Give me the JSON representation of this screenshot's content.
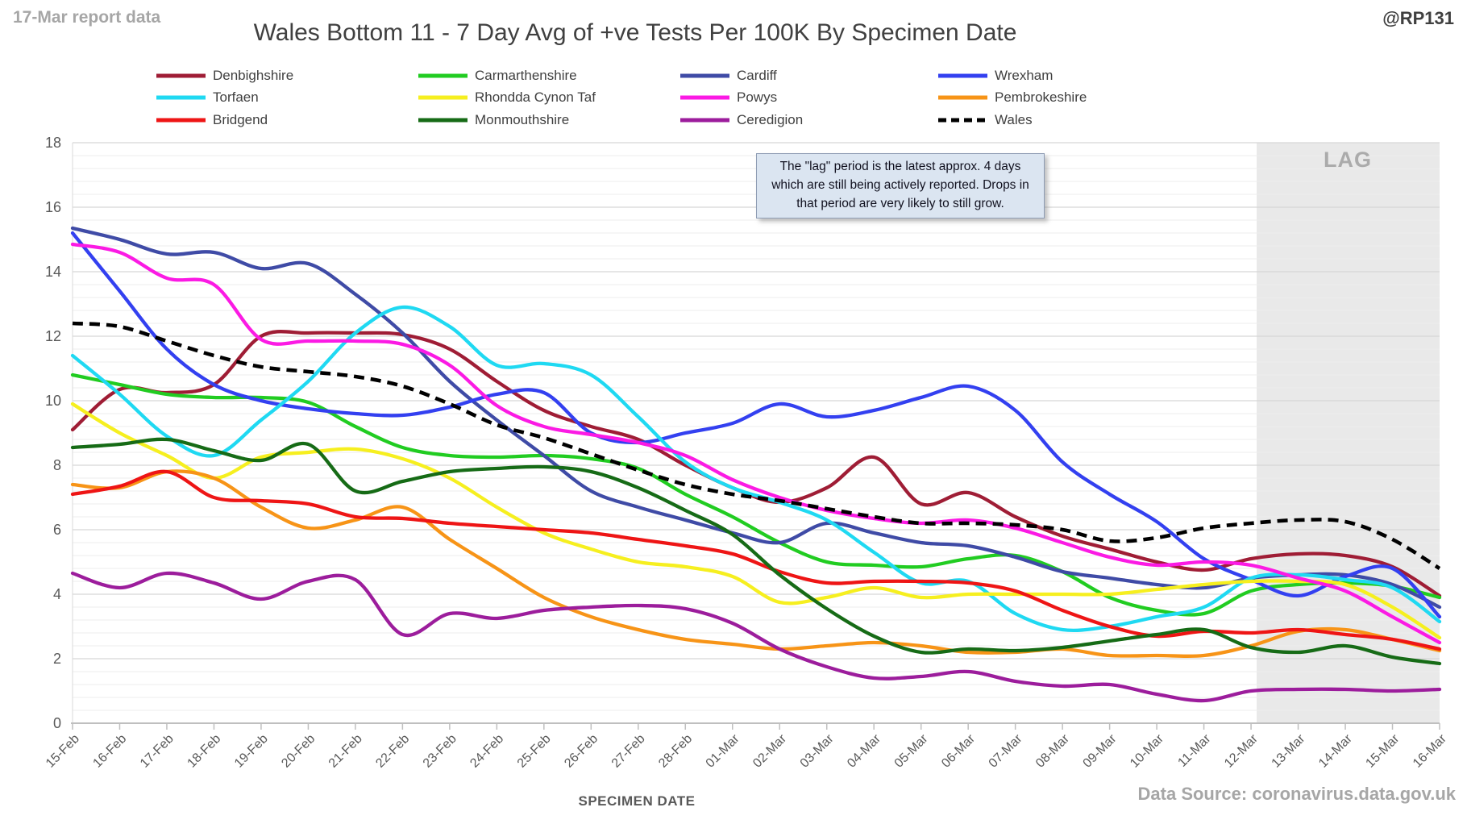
{
  "header": {
    "report_note": "17-Mar report data",
    "title": "Wales Bottom 11 - 7 Day Avg of +ve Tests Per 100K By Specimen Date",
    "handle": "@RP131"
  },
  "annotation": {
    "text": "The \"lag\" period is the latest approx. 4 days which are still being actively reported. Drops in that period are very likely to still grow."
  },
  "lag_label": "LAG",
  "xaxis_title": "SPECIMEN DATE",
  "source": "Data Source: coronavirus.data.gov.uk",
  "chart_data": {
    "type": "line",
    "title": "Wales Bottom 11 - 7 Day Avg of +ve Tests Per 100K By Specimen Date",
    "xlabel": "SPECIMEN DATE",
    "ylabel": "",
    "ylim": [
      0,
      18
    ],
    "yticks": [
      0,
      2,
      4,
      6,
      8,
      10,
      12,
      14,
      16,
      18
    ],
    "minor_grid_step": 0.4,
    "grid": true,
    "legend_position": "top",
    "lag_band": {
      "label": "LAG",
      "starts_after": "12-Mar",
      "color": "#e9e9e9"
    },
    "categories": [
      "15-Feb",
      "16-Feb",
      "17-Feb",
      "18-Feb",
      "19-Feb",
      "20-Feb",
      "21-Feb",
      "22-Feb",
      "23-Feb",
      "24-Feb",
      "25-Feb",
      "26-Feb",
      "27-Feb",
      "28-Feb",
      "01-Mar",
      "02-Mar",
      "03-Mar",
      "04-Mar",
      "05-Mar",
      "06-Mar",
      "07-Mar",
      "08-Mar",
      "09-Mar",
      "10-Mar",
      "11-Mar",
      "12-Mar",
      "13-Mar",
      "14-Mar",
      "15-Mar",
      "16-Mar"
    ],
    "series": [
      {
        "name": "Denbighshire",
        "color": "#9f1d35",
        "dash": false,
        "values": [
          9.1,
          10.35,
          10.25,
          10.5,
          12.0,
          12.1,
          12.1,
          12.05,
          11.6,
          10.6,
          9.7,
          9.2,
          8.8,
          8.0,
          7.3,
          6.85,
          7.3,
          8.25,
          6.8,
          7.15,
          6.4,
          5.8,
          5.4,
          5.0,
          4.75,
          5.1,
          5.25,
          5.2,
          4.85,
          3.95
        ]
      },
      {
        "name": "Carmarthenshire",
        "color": "#21cc21",
        "dash": false,
        "values": [
          10.8,
          10.5,
          10.2,
          10.1,
          10.1,
          9.95,
          9.2,
          8.55,
          8.3,
          8.25,
          8.3,
          8.2,
          7.9,
          7.1,
          6.4,
          5.6,
          5.0,
          4.9,
          4.85,
          5.1,
          5.2,
          4.7,
          3.9,
          3.5,
          3.4,
          4.1,
          4.3,
          4.35,
          4.25,
          3.9
        ]
      },
      {
        "name": "Cardiff",
        "color": "#3f4ba6",
        "dash": false,
        "values": [
          15.35,
          15.0,
          14.55,
          14.6,
          14.1,
          14.25,
          13.3,
          12.1,
          10.6,
          9.4,
          8.3,
          7.2,
          6.7,
          6.3,
          5.9,
          5.6,
          6.2,
          5.9,
          5.6,
          5.5,
          5.15,
          4.7,
          4.5,
          4.3,
          4.2,
          4.5,
          4.6,
          4.6,
          4.3,
          3.6
        ]
      },
      {
        "name": "Wrexham",
        "color": "#3340f0",
        "dash": false,
        "values": [
          15.2,
          13.4,
          11.6,
          10.5,
          10.0,
          9.75,
          9.6,
          9.55,
          9.8,
          10.2,
          10.25,
          9.0,
          8.7,
          9.0,
          9.3,
          9.9,
          9.5,
          9.7,
          10.1,
          10.45,
          9.7,
          8.1,
          7.1,
          6.25,
          5.1,
          4.45,
          3.95,
          4.55,
          4.8,
          3.3
        ]
      },
      {
        "name": "Torfaen",
        "color": "#1fd9f2",
        "dash": false,
        "values": [
          11.4,
          10.2,
          8.9,
          8.3,
          9.4,
          10.6,
          12.1,
          12.9,
          12.3,
          11.1,
          11.15,
          10.8,
          9.5,
          8.1,
          7.3,
          6.85,
          6.3,
          5.3,
          4.35,
          4.4,
          3.4,
          2.9,
          3.0,
          3.3,
          3.6,
          4.5,
          4.6,
          4.45,
          4.2,
          3.15
        ]
      },
      {
        "name": "Rhondda Cynon Taf",
        "color": "#f6ef1f",
        "dash": false,
        "values": [
          9.9,
          9.0,
          8.3,
          7.6,
          8.25,
          8.4,
          8.5,
          8.2,
          7.6,
          6.7,
          5.9,
          5.4,
          5.0,
          4.85,
          4.55,
          3.75,
          3.9,
          4.2,
          3.9,
          4.0,
          4.0,
          4.0,
          4.0,
          4.15,
          4.3,
          4.4,
          4.4,
          4.3,
          3.6,
          2.65
        ]
      },
      {
        "name": "Powys",
        "color": "#fb1ae4",
        "dash": false,
        "values": [
          14.85,
          14.6,
          13.8,
          13.6,
          11.9,
          11.85,
          11.85,
          11.75,
          11.1,
          9.85,
          9.2,
          8.95,
          8.7,
          8.3,
          7.55,
          7.0,
          6.6,
          6.35,
          6.2,
          6.3,
          6.05,
          5.6,
          5.15,
          4.9,
          5.0,
          4.9,
          4.5,
          4.1,
          3.3,
          2.5
        ]
      },
      {
        "name": "Pembrokeshire",
        "color": "#f79417",
        "dash": false,
        "values": [
          7.4,
          7.3,
          7.8,
          7.6,
          6.7,
          6.05,
          6.3,
          6.7,
          5.7,
          4.8,
          3.9,
          3.3,
          2.9,
          2.6,
          2.45,
          2.3,
          2.4,
          2.5,
          2.4,
          2.2,
          2.2,
          2.3,
          2.1,
          2.1,
          2.1,
          2.4,
          2.85,
          2.9,
          2.6,
          2.25
        ]
      },
      {
        "name": "Bridgend",
        "color": "#ee1515",
        "dash": false,
        "values": [
          7.1,
          7.35,
          7.8,
          7.0,
          6.9,
          6.8,
          6.4,
          6.35,
          6.2,
          6.1,
          6.0,
          5.9,
          5.7,
          5.5,
          5.25,
          4.7,
          4.35,
          4.4,
          4.4,
          4.35,
          4.1,
          3.5,
          3.0,
          2.7,
          2.85,
          2.8,
          2.9,
          2.75,
          2.6,
          2.3
        ]
      },
      {
        "name": "Monmouthshire",
        "color": "#166b16",
        "dash": false,
        "values": [
          8.55,
          8.65,
          8.8,
          8.45,
          8.15,
          8.65,
          7.2,
          7.5,
          7.8,
          7.9,
          7.95,
          7.8,
          7.3,
          6.6,
          5.85,
          4.6,
          3.55,
          2.7,
          2.2,
          2.3,
          2.25,
          2.35,
          2.55,
          2.75,
          2.9,
          2.35,
          2.2,
          2.4,
          2.05,
          1.85
        ]
      },
      {
        "name": "Ceredigion",
        "color": "#9c1d9c",
        "dash": false,
        "values": [
          4.65,
          4.2,
          4.65,
          4.35,
          3.85,
          4.4,
          4.45,
          2.75,
          3.4,
          3.25,
          3.5,
          3.6,
          3.65,
          3.55,
          3.1,
          2.3,
          1.75,
          1.4,
          1.45,
          1.6,
          1.3,
          1.15,
          1.2,
          0.9,
          0.7,
          1.0,
          1.05,
          1.05,
          1.0,
          1.05
        ]
      },
      {
        "name": "Wales",
        "color": "#000000",
        "dash": true,
        "values": [
          12.4,
          12.3,
          11.85,
          11.4,
          11.05,
          10.9,
          10.75,
          10.45,
          9.9,
          9.25,
          8.85,
          8.35,
          7.85,
          7.4,
          7.1,
          6.9,
          6.65,
          6.4,
          6.2,
          6.2,
          6.15,
          6.0,
          5.65,
          5.75,
          6.05,
          6.2,
          6.3,
          6.25,
          5.7,
          4.8
        ]
      }
    ]
  }
}
